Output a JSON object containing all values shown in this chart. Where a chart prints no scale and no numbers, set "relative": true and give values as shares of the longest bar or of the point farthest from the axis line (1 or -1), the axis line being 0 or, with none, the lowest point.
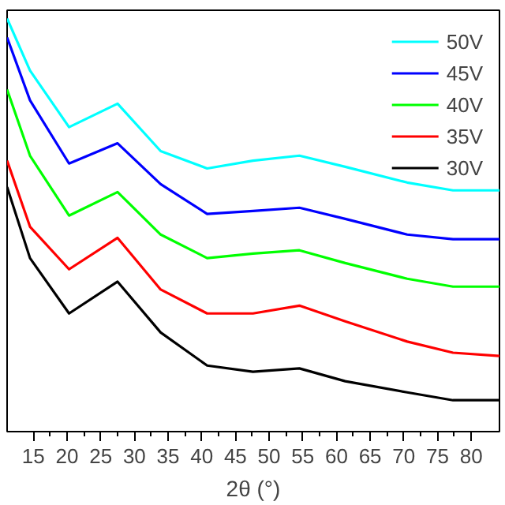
{
  "chart_data": {
    "type": "line",
    "relative": true,
    "xlabel": "2θ (°)",
    "legend": "top right",
    "grid": false,
    "x": [
      11.1,
      14.5,
      20.3,
      27.5,
      33.9,
      40.8,
      47.6,
      54.5,
      61.3,
      70.5,
      77.3,
      84.2
    ],
    "xlim": [
      11.1,
      84.2
    ],
    "xticks": [
      15,
      20,
      25,
      30,
      35,
      40,
      45,
      50,
      55,
      60,
      65,
      70,
      75,
      80
    ],
    "series": [
      {
        "name": "50V",
        "color": "#00ffff",
        "values": [
          1,
          0.874,
          0.737,
          0.794,
          0.679,
          0.637,
          0.656,
          0.668,
          0.641,
          0.603,
          0.584,
          0.584
        ]
      },
      {
        "name": "45V",
        "color": "#0000ff",
        "values": [
          0.954,
          0.802,
          0.649,
          0.698,
          0.599,
          0.527,
          0.534,
          0.542,
          0.515,
          0.477,
          0.466,
          0.466
        ]
      },
      {
        "name": "40V",
        "color": "#00ff00",
        "values": [
          0.828,
          0.668,
          0.523,
          0.58,
          0.477,
          0.42,
          0.431,
          0.439,
          0.408,
          0.37,
          0.351,
          0.351
        ]
      },
      {
        "name": "35V",
        "color": "#ff0000",
        "values": [
          0.656,
          0.496,
          0.393,
          0.469,
          0.344,
          0.286,
          0.286,
          0.305,
          0.267,
          0.218,
          0.191,
          0.183
        ]
      },
      {
        "name": "30V",
        "color": "#000000",
        "values": [
          0.592,
          0.42,
          0.286,
          0.363,
          0.24,
          0.16,
          0.145,
          0.153,
          0.122,
          0.095,
          0.076,
          0.076
        ]
      }
    ]
  }
}
